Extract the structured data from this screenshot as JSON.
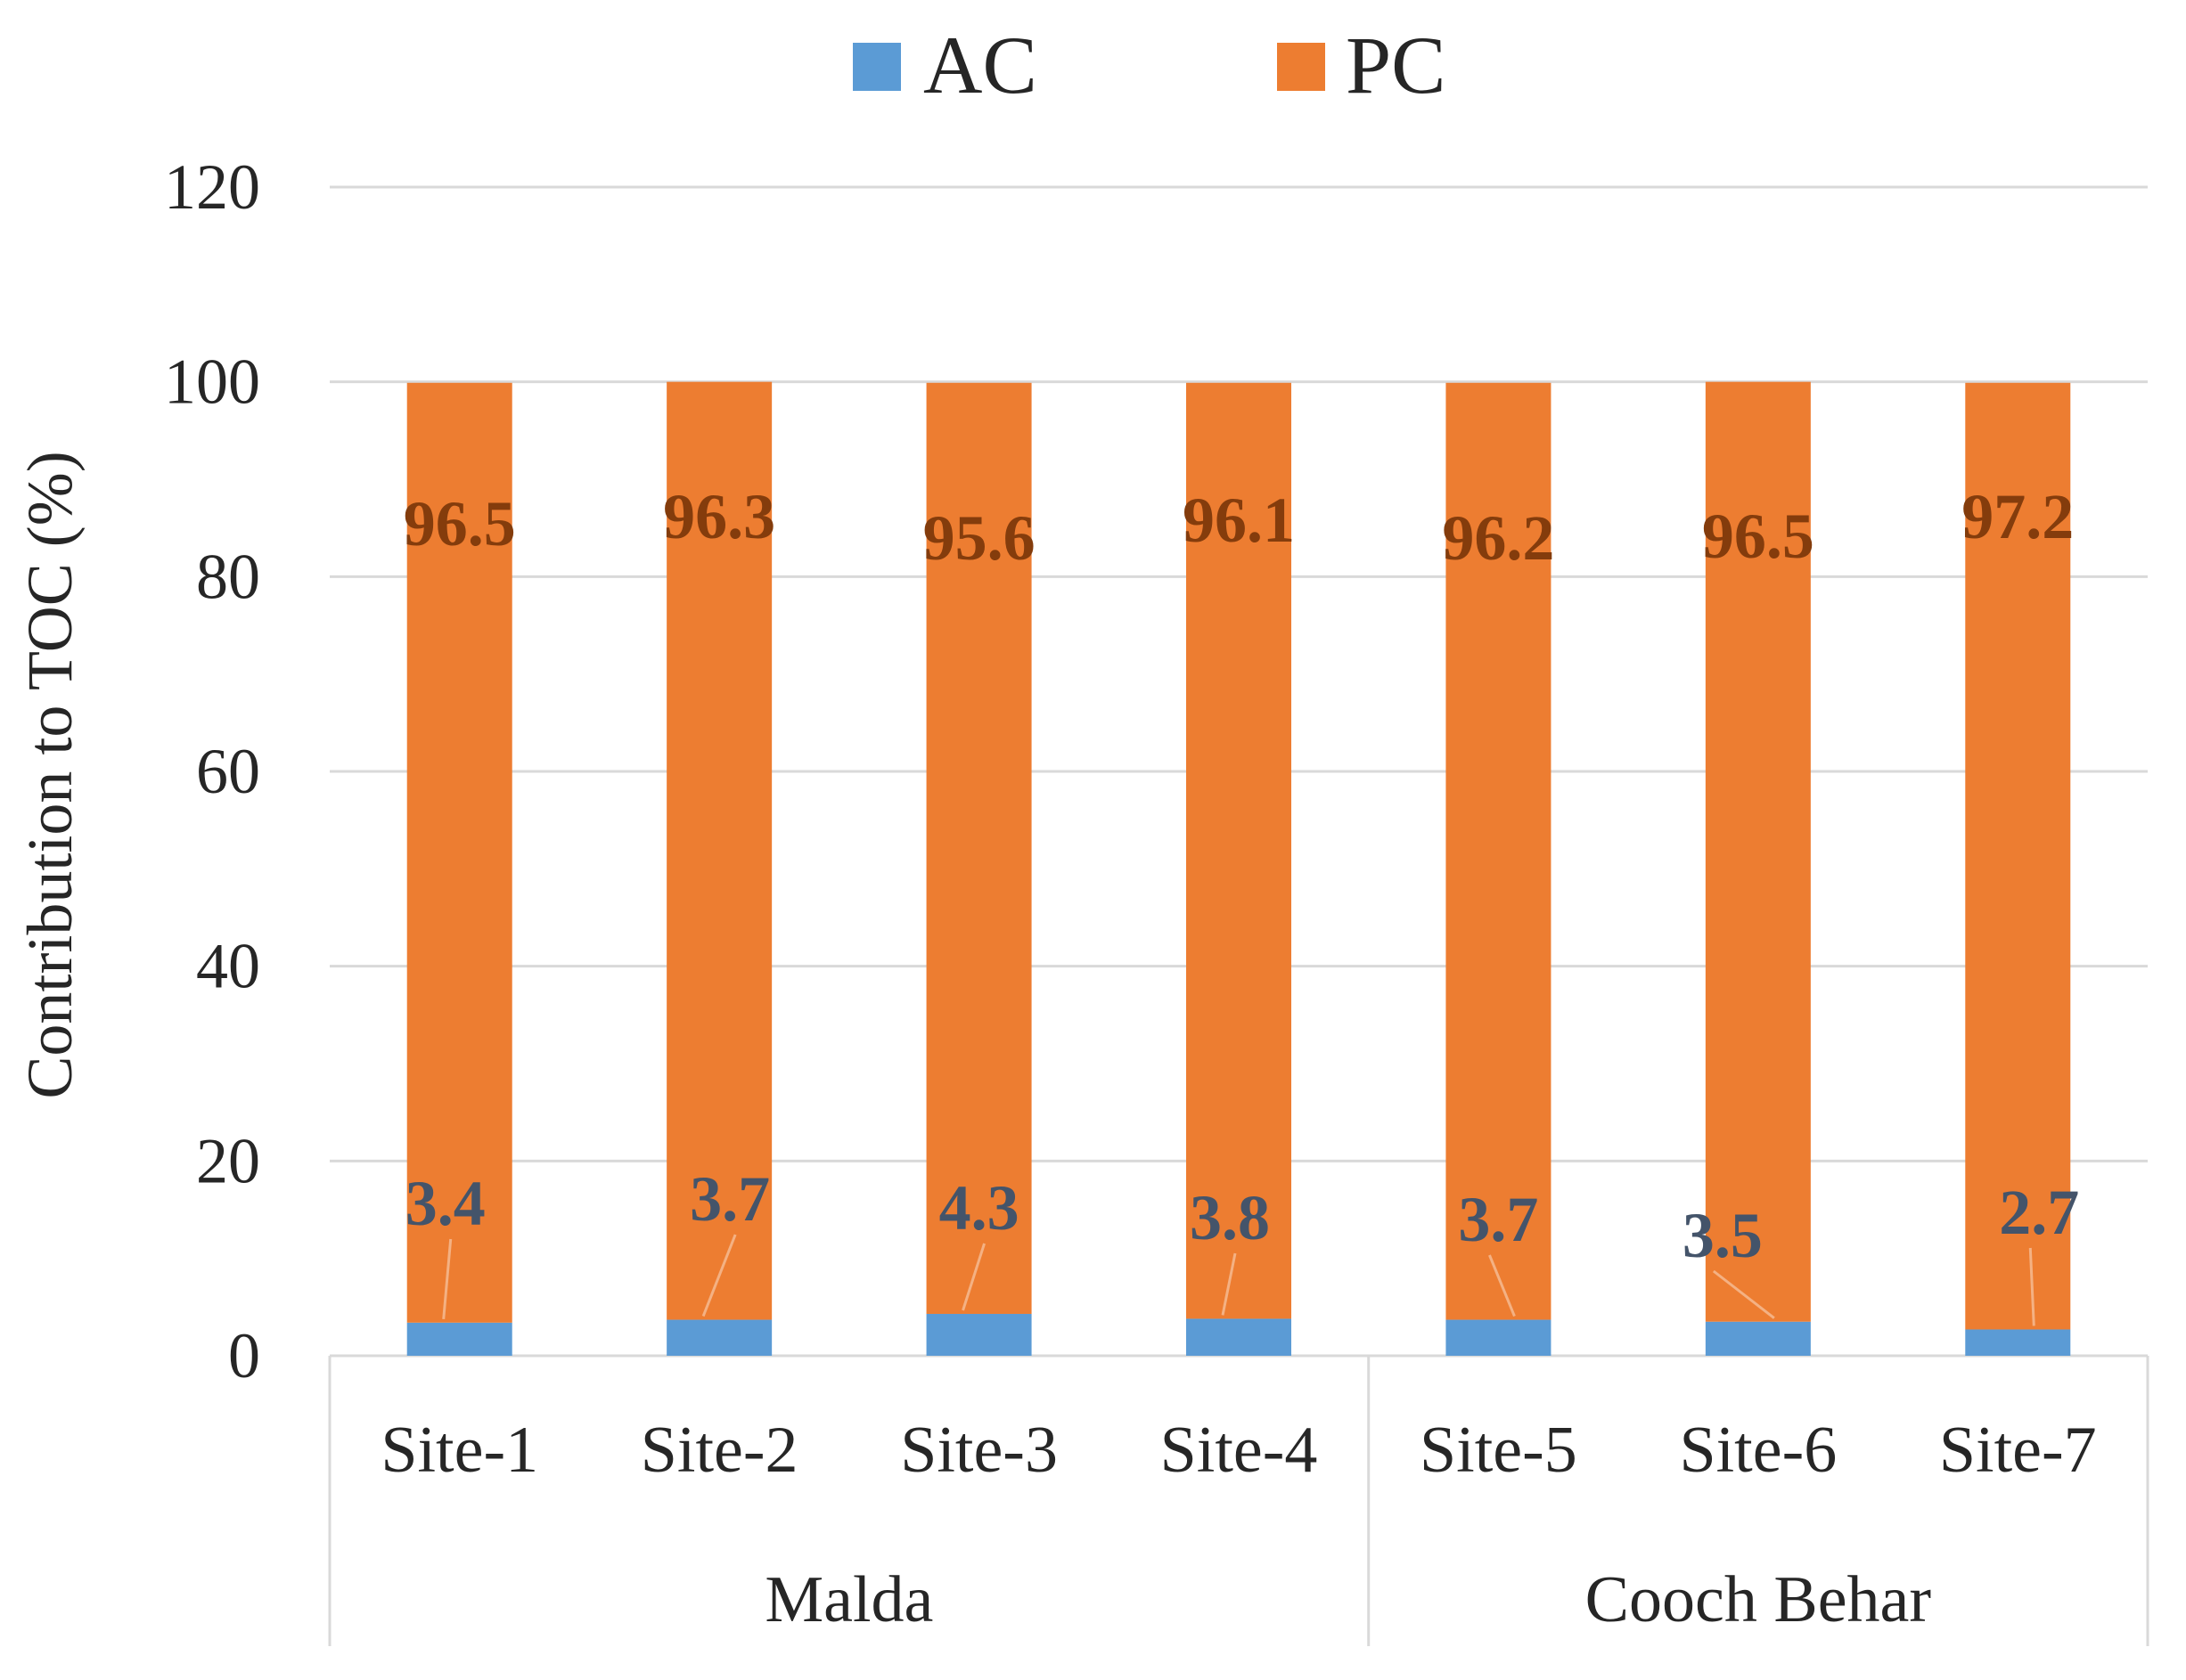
{
  "chart_data": {
    "type": "bar",
    "stacked": true,
    "ylabel": "Contribution  to TOC (%)",
    "ylim": [
      0,
      120
    ],
    "yticks": [
      0,
      20,
      40,
      60,
      80,
      100,
      120
    ],
    "grid": true,
    "legend_position": "top-center",
    "categories": [
      "Site-1",
      "Site-2",
      "Site-3",
      "Site-4",
      "Site-5",
      "Site-6",
      "Site-7"
    ],
    "groups": [
      {
        "label": "Malda",
        "categories": [
          "Site-1",
          "Site-2",
          "Site-3",
          "Site-4"
        ]
      },
      {
        "label": "Cooch Behar",
        "categories": [
          "Site-5",
          "Site-6",
          "Site-7"
        ]
      }
    ],
    "series": [
      {
        "name": "AC",
        "color": "#5B9BD5",
        "label_color": "#44546A",
        "values": [
          3.4,
          3.7,
          4.3,
          3.8,
          3.7,
          3.5,
          2.7
        ]
      },
      {
        "name": "PC",
        "color": "#ED7D31",
        "label_color": "#843C0C",
        "values": [
          96.5,
          96.3,
          95.6,
          96.1,
          96.2,
          96.5,
          97.2
        ]
      }
    ]
  }
}
